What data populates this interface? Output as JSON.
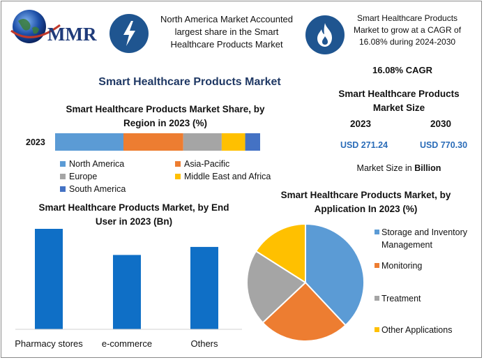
{
  "header": {
    "logo_text": "MMR",
    "fact_left": "North America Market Accounted largest share in the Smart Healthcare Products Market",
    "fact_right": "Smart Healthcare Products Market to grow at a CAGR of 16.08% during 2024-2030",
    "icon_left": "lightning-icon",
    "icon_right": "flame-icon"
  },
  "main_title": "Smart Healthcare Products Market",
  "cagr": "16.08% CAGR",
  "market_size": {
    "title": "Smart Healthcare Products Market Size",
    "year_a": "2023",
    "year_b": "2030",
    "value_a": "USD 271.24",
    "value_b": "USD 770.30",
    "unit_prefix": "Market Size in",
    "unit_bold": "Billion"
  },
  "colors": {
    "blue_light": "#5b9bd5",
    "orange": "#ed7d31",
    "gray": "#a5a5a5",
    "yellow": "#ffc000",
    "blue_dark": "#4472c4",
    "bar_blue": "#0f6fc6",
    "navy": "#1f3864"
  },
  "chart_data": [
    {
      "type": "bar",
      "orientation": "horizontal-stacked",
      "title": "Smart Healthcare Products Market Share, by Region in 2023 (%)",
      "categories": [
        "2023"
      ],
      "series": [
        {
          "name": "North America",
          "values": [
            32
          ],
          "color": "#5b9bd5"
        },
        {
          "name": "Asia-Pacific",
          "values": [
            28
          ],
          "color": "#ed7d31"
        },
        {
          "name": "Europe",
          "values": [
            18
          ],
          "color": "#a5a5a5"
        },
        {
          "name": "Middle East and Africa",
          "values": [
            11
          ],
          "color": "#ffc000"
        },
        {
          "name": "South America",
          "values": [
            7
          ],
          "color": "#4472c4"
        }
      ],
      "legend": "bottom"
    },
    {
      "type": "bar",
      "title": "Smart Healthcare Products Market, by End User in 2023 (Bn)",
      "categories": [
        "Pharmacy stores",
        "e-commerce",
        "Others"
      ],
      "values": [
        100,
        74,
        82
      ],
      "ylim": [
        0,
        100
      ],
      "color": "#0f6fc6"
    },
    {
      "type": "pie",
      "title": "Smart Healthcare Products Market, by Application In 2023 (%)",
      "labels": [
        "Storage and Inventory Management",
        "Monitoring",
        "Treatment",
        "Other Applications"
      ],
      "values": [
        38,
        25,
        21,
        16
      ],
      "colors": [
        "#5b9bd5",
        "#ed7d31",
        "#a5a5a5",
        "#ffc000"
      ],
      "legend": "right"
    }
  ]
}
